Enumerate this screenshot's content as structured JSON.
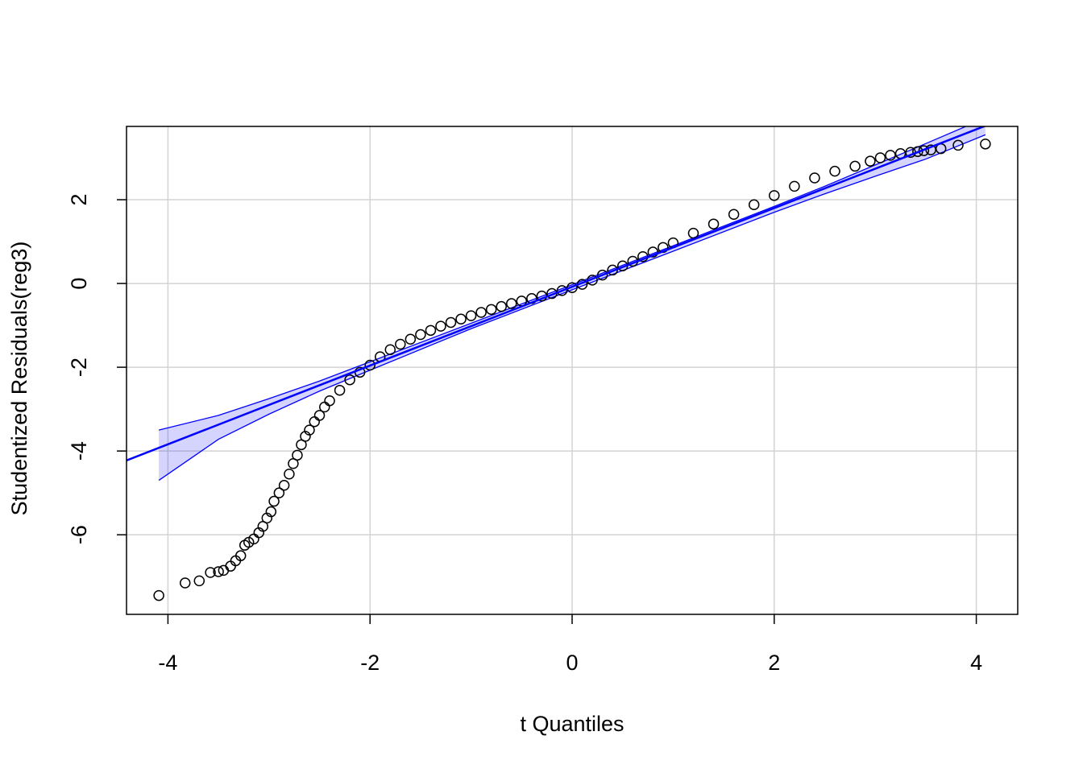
{
  "chart_data": {
    "type": "scatter",
    "x_label": "t Quantiles",
    "y_label": "Studentized Residuals(reg3)",
    "x": [
      -4.09,
      -3.83,
      -3.69,
      -3.58,
      -3.5,
      -3.45,
      -3.38,
      -3.33,
      -3.28,
      -3.24,
      -3.2,
      -3.15,
      -3.1,
      -3.06,
      -3.02,
      -2.98,
      -2.95,
      -2.9,
      -2.85,
      -2.8,
      -2.76,
      -2.72,
      -2.68,
      -2.64,
      -2.6,
      -2.55,
      -2.5,
      -2.45,
      -2.4,
      -2.3,
      -2.2,
      -2.1,
      -2.0,
      -1.9,
      -1.8,
      -1.7,
      -1.6,
      -1.5,
      -1.4,
      -1.3,
      -1.2,
      -1.1,
      -1.0,
      -0.9,
      -0.8,
      -0.7,
      -0.6,
      -0.5,
      -0.4,
      -0.3,
      -0.2,
      -0.1,
      0.0,
      0.1,
      0.2,
      0.3,
      0.4,
      0.5,
      0.6,
      0.7,
      0.8,
      0.9,
      1.0,
      1.2,
      1.4,
      1.6,
      1.8,
      2.0,
      2.2,
      2.4,
      2.6,
      2.8,
      2.95,
      3.05,
      3.15,
      3.25,
      3.35,
      3.42,
      3.48,
      3.55,
      3.65,
      3.82,
      4.09
    ],
    "y": [
      -7.45,
      -7.15,
      -7.1,
      -6.9,
      -6.88,
      -6.85,
      -6.75,
      -6.62,
      -6.5,
      -6.25,
      -6.18,
      -6.1,
      -5.95,
      -5.8,
      -5.6,
      -5.45,
      -5.2,
      -5.0,
      -4.82,
      -4.55,
      -4.3,
      -4.1,
      -3.85,
      -3.65,
      -3.5,
      -3.3,
      -3.15,
      -2.95,
      -2.8,
      -2.55,
      -2.3,
      -2.12,
      -1.95,
      -1.75,
      -1.58,
      -1.45,
      -1.33,
      -1.22,
      -1.12,
      -1.02,
      -0.93,
      -0.85,
      -0.77,
      -0.69,
      -0.62,
      -0.55,
      -0.48,
      -0.42,
      -0.36,
      -0.3,
      -0.24,
      -0.17,
      -0.1,
      -0.02,
      0.08,
      0.2,
      0.32,
      0.42,
      0.53,
      0.64,
      0.75,
      0.86,
      0.97,
      1.2,
      1.42,
      1.65,
      1.88,
      2.1,
      2.32,
      2.52,
      2.68,
      2.8,
      2.92,
      3.0,
      3.06,
      3.1,
      3.13,
      3.15,
      3.17,
      3.19,
      3.22,
      3.3,
      3.33
    ],
    "reference_line": {
      "slope": 0.94,
      "intercept": -0.08
    },
    "envelope": {
      "x": [
        -4.09,
        -3.5,
        -3.0,
        -2.5,
        -2.0,
        -1.0,
        0.0,
        1.0,
        2.0,
        2.5,
        3.0,
        3.5,
        4.09
      ],
      "upper": [
        -3.5,
        -3.15,
        -2.75,
        -2.33,
        -1.87,
        -0.95,
        -0.03,
        0.9,
        1.84,
        2.32,
        2.83,
        3.34,
        3.95
      ],
      "lower": [
        -4.7,
        -3.72,
        -3.12,
        -2.57,
        -2.07,
        -1.08,
        -0.15,
        0.77,
        1.7,
        2.14,
        2.56,
        2.97,
        3.55
      ]
    },
    "point_color": "#000000",
    "line_color": "#0000ff",
    "band_fill": "rgba(0,0,255,0.17)",
    "xlim": [
      -4.41,
      4.41
    ],
    "ylim": [
      -7.9,
      3.75
    ],
    "xticks": [
      -4,
      -2,
      0,
      2,
      4
    ],
    "yticks": [
      -6,
      -4,
      -2,
      0,
      2
    ],
    "grid": true
  }
}
